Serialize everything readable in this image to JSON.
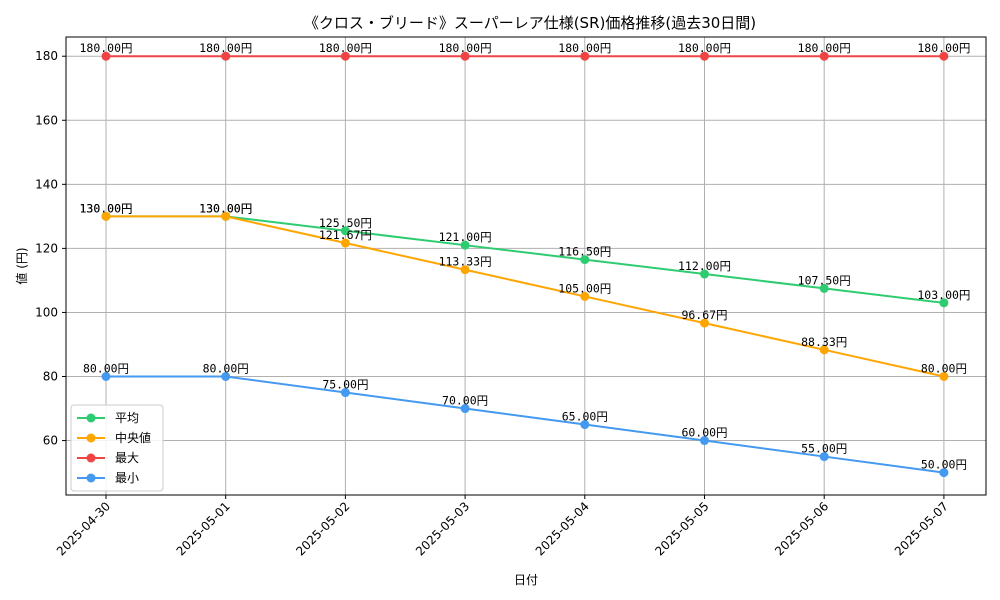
{
  "chart_data": {
    "type": "line",
    "title": "《クロス・ブリード》スーパーレア仕様(SR)価格推移(過去30日間)",
    "xlabel": "日付",
    "ylabel": "値 (円)",
    "categories": [
      "2025-04-30",
      "2025-05-01",
      "2025-05-02",
      "2025-05-03",
      "2025-05-04",
      "2025-05-05",
      "2025-05-06",
      "2025-05-07"
    ],
    "ylim": [
      43,
      186
    ],
    "yticks": [
      60,
      80,
      100,
      120,
      140,
      160,
      180
    ],
    "grid": true,
    "legend_position": "lower-left",
    "series": [
      {
        "name": "平均",
        "color": "#2ecc71",
        "values": [
          130,
          130,
          125.5,
          121,
          116.5,
          112,
          107.5,
          103
        ],
        "labels": [
          "130.00円",
          "130.00円",
          "125.50円",
          "121.00円",
          "116.50円",
          "112.00円",
          "107.50円",
          "103.00円"
        ]
      },
      {
        "name": "中央値",
        "color": "#ffa500",
        "values": [
          130,
          130,
          121.67,
          113.33,
          105,
          96.67,
          88.33,
          80
        ],
        "labels": [
          "130.00円",
          "130.00円",
          "121.67円",
          "113.33円",
          "105.00円",
          "96.67円",
          "88.33円",
          "80.00円"
        ]
      },
      {
        "name": "最大",
        "color": "#f04444",
        "values": [
          180,
          180,
          180,
          180,
          180,
          180,
          180,
          180
        ],
        "labels": [
          "180.00円",
          "180.00円",
          "180.00円",
          "180.00円",
          "180.00円",
          "180.00円",
          "180.00円",
          "180.00円"
        ]
      },
      {
        "name": "最小",
        "color": "#4499f0",
        "values": [
          80,
          80,
          75,
          70,
          65,
          60,
          55,
          50
        ],
        "labels": [
          "80.00円",
          "80.00円",
          "75.00円",
          "70.00円",
          "65.00円",
          "60.00円",
          "55.00円",
          "50.00円"
        ]
      }
    ]
  }
}
